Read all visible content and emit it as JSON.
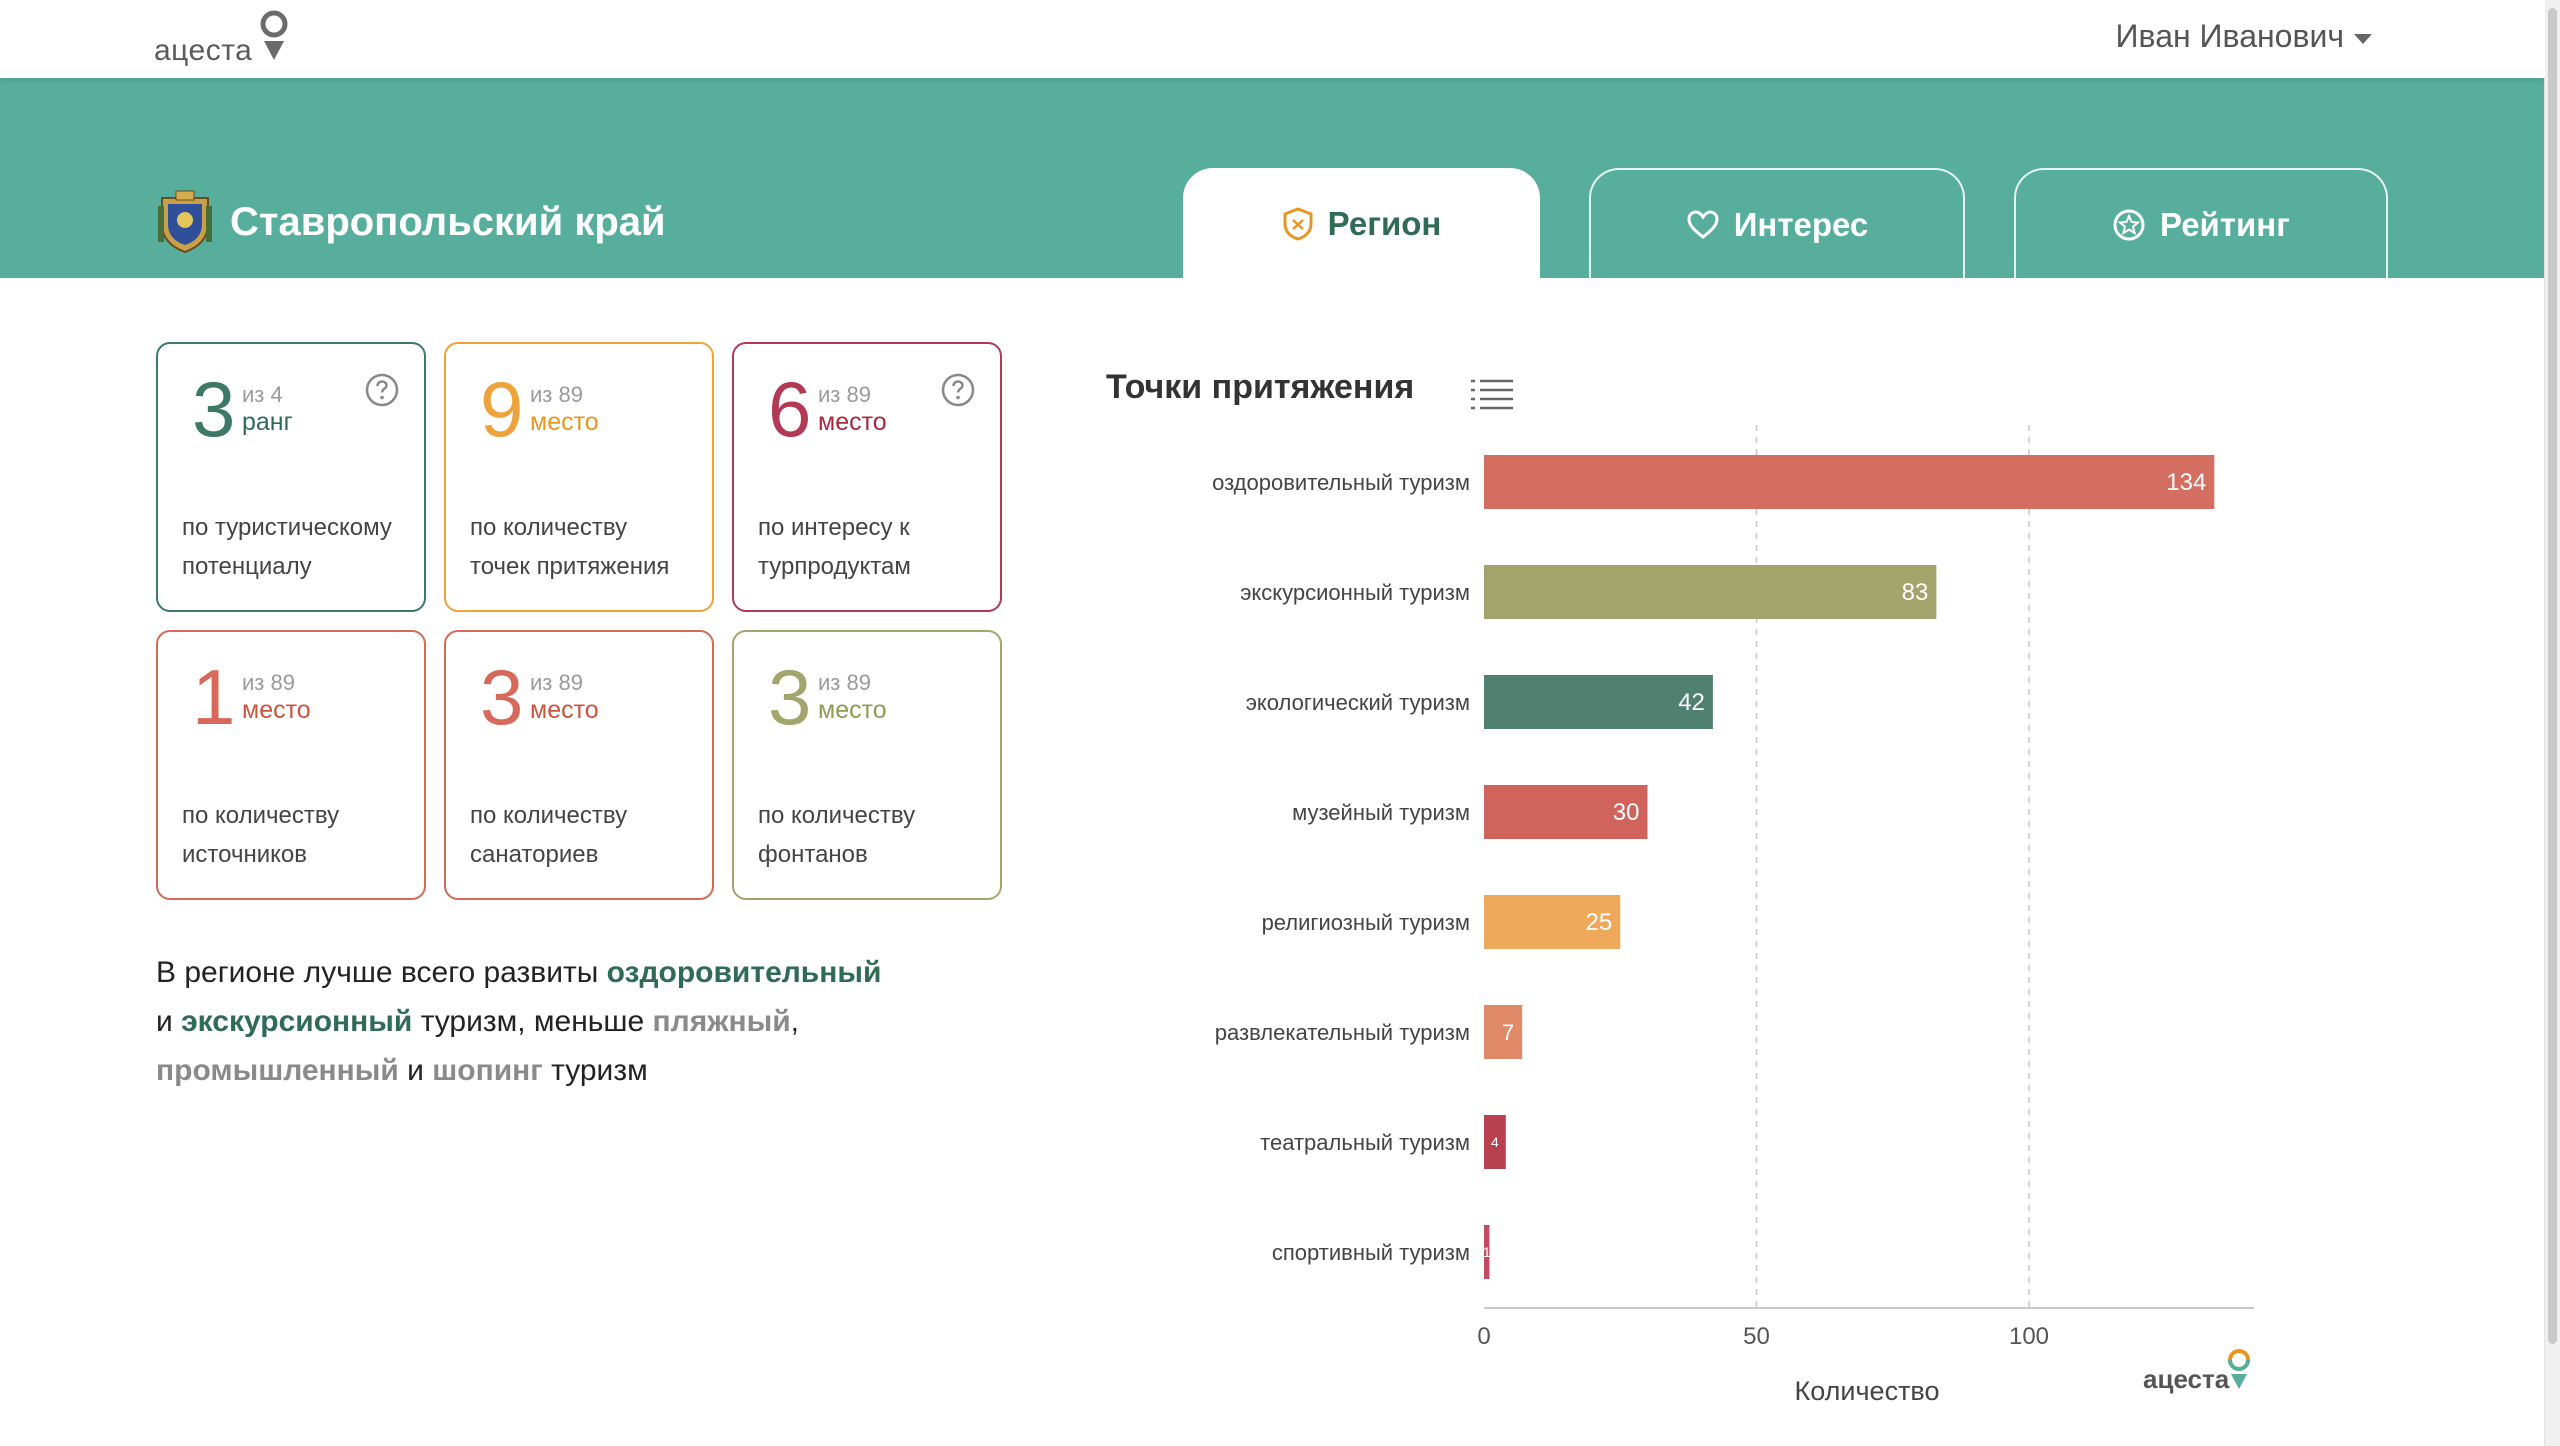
{
  "header": {
    "logo_text": "ацеста",
    "user_name": "Иван Иванович"
  },
  "region": {
    "title": "Ставропольский край"
  },
  "tabs": [
    {
      "label": "Регион",
      "icon": "shield-icon",
      "active": true
    },
    {
      "label": "Интерес",
      "icon": "heart-icon",
      "active": false
    },
    {
      "label": "Рейтинг",
      "icon": "star-badge-icon",
      "active": false
    }
  ],
  "cards": [
    {
      "value": "3",
      "of": "из 4",
      "unit": "ранг",
      "desc": "по туристическому потенциалу",
      "color": "#3d7a66",
      "unit_color": "#2f6b55",
      "help": true
    },
    {
      "value": "9",
      "of": "из 89",
      "unit": "место",
      "desc": "по количеству точек притяжения",
      "color": "#eea23a",
      "unit_color": "#e8961f",
      "help": false
    },
    {
      "value": "6",
      "of": "из 89",
      "unit": "место",
      "desc": "по интересу к турпродуктам",
      "color": "#b23a55",
      "unit_color": "#a8293f",
      "help": true
    },
    {
      "value": "1",
      "of": "из 89",
      "unit": "место",
      "desc": "по количеству источников",
      "color": "#d7695a",
      "unit_color": "#c9553f",
      "help": false
    },
    {
      "value": "3",
      "of": "из 89",
      "unit": "место",
      "desc": "по количеству санаториев",
      "color": "#d7695a",
      "unit_color": "#c9553f",
      "help": false
    },
    {
      "value": "3",
      "of": "из 89",
      "unit": "место",
      "desc": "по количеству фонтанов",
      "color": "#a3a56c",
      "unit_color": "#8f9a55",
      "help": false
    }
  ],
  "summary": {
    "p1": "В регионе лучше всего развиты ",
    "h1": "оздоровительный",
    "p2": " и ",
    "h2": "экскурсионный",
    "p3": " туризм, меньше ",
    "h3": "пляжный",
    "p4": ", ",
    "h4": "промышленный",
    "p5": " и ",
    "h5": "шопинг",
    "p6": " туризм"
  },
  "chart_title": "Точки притяжения",
  "chart_data": {
    "type": "bar",
    "orientation": "horizontal",
    "categories": [
      "оздоровительный туризм",
      "экскурсионный туризм",
      "экологический туризм",
      "музейный туризм",
      "религиозный туризм",
      "развлекательный туризм",
      "театральный туризм",
      "спортивный туризм"
    ],
    "values": [
      134,
      83,
      42,
      30,
      25,
      7,
      4,
      1
    ],
    "colors": [
      "#d36e61",
      "#a3a36c",
      "#4f8070",
      "#d0645c",
      "#eea85a",
      "#e08a68",
      "#b8404f",
      "#c24a62"
    ],
    "xlabel": "Количество",
    "ylabel": "",
    "xlim": [
      0,
      140
    ],
    "xticks": [
      0,
      50,
      100
    ],
    "grid": "vertical-dashed"
  },
  "chart_logo_text": "ацеста"
}
